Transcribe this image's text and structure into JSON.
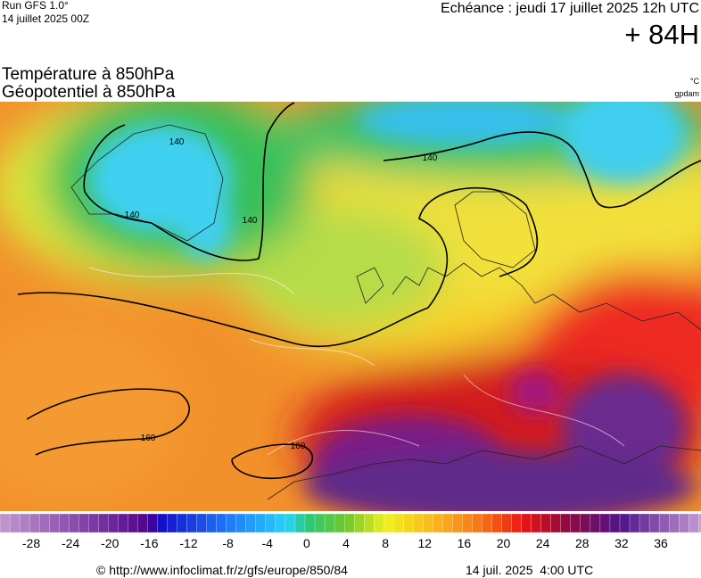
{
  "header": {
    "run": "Run GFS 1.0°",
    "run_date": "14 juillet 2025 00Z",
    "forecast": "Echéance : jeudi 17 juillet 2025 12h UTC",
    "lead": "+ 84H"
  },
  "titles": {
    "temperature": "Température à 850hPa",
    "geopotential": "Géopotentiel à 850hPa"
  },
  "units": {
    "temperature": "°C",
    "geopotential": "gpdam"
  },
  "contour_labels": [
    140,
    140,
    140,
    140,
    160,
    160
  ],
  "colorbar": {
    "ticks": [
      -28,
      -24,
      -20,
      -16,
      -12,
      -8,
      -4,
      0,
      4,
      8,
      12,
      16,
      20,
      24,
      28,
      32,
      36
    ]
  },
  "footer": {
    "source": "© http://www.infoclimat.fr/z/gfs/europe/850/84",
    "timestamp": "14 juil. 2025  4:00 UTC"
  }
}
